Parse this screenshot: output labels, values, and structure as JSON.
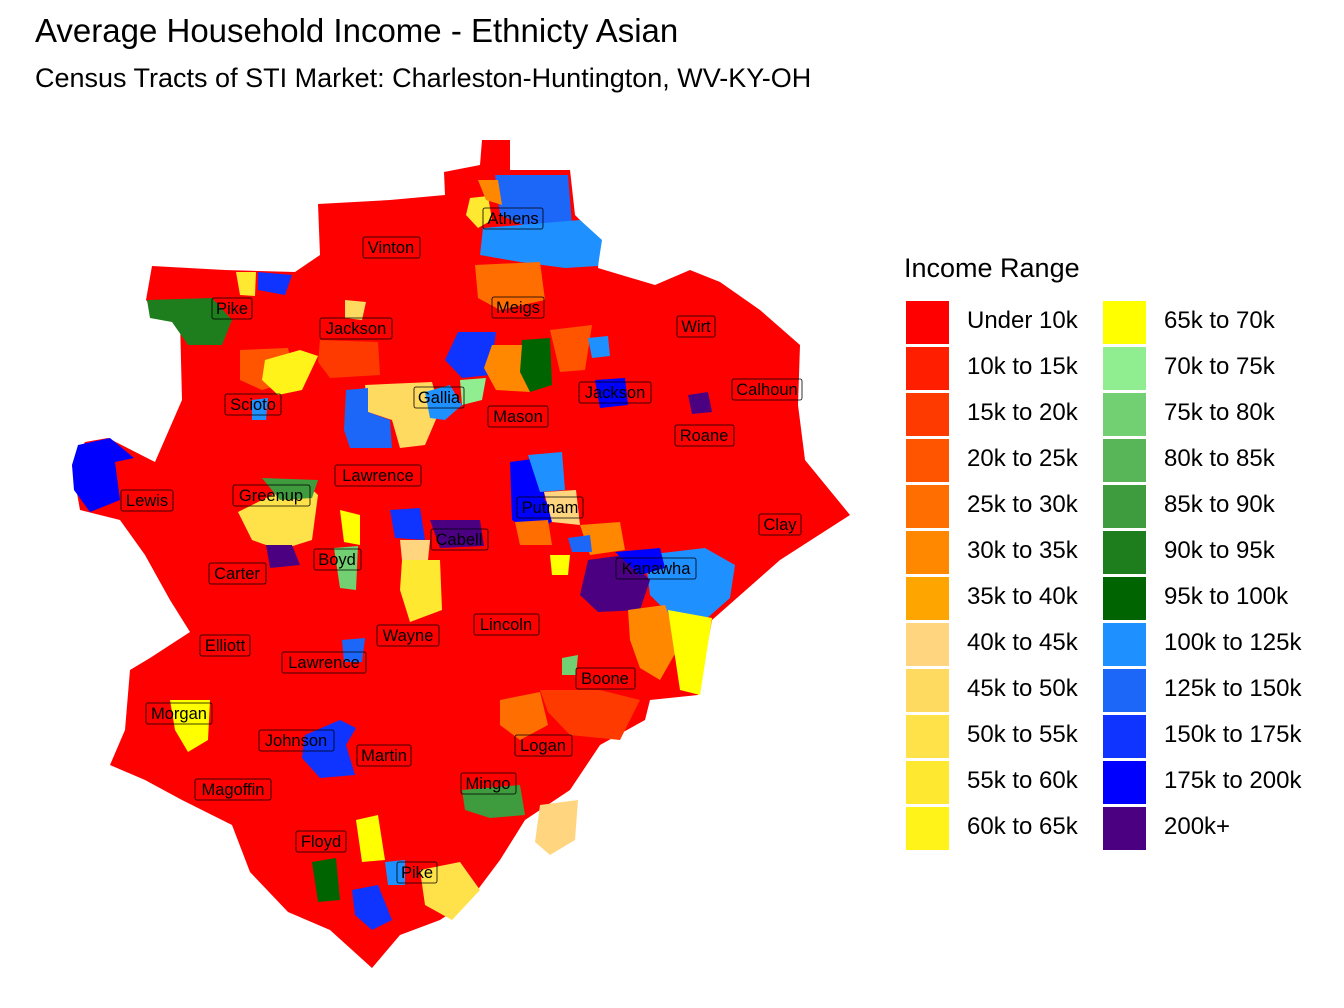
{
  "title": "Average Household Income - Ethnicty Asian",
  "subtitle": "Census Tracts of STI Market: Charleston-Huntington, WV-KY-OH",
  "legend": {
    "title": "Income Range",
    "items": [
      {
        "label": "Under 10k",
        "color": "#FF0000"
      },
      {
        "label": "10k to 15k",
        "color": "#FF1F00"
      },
      {
        "label": "15k to 20k",
        "color": "#FF3A00"
      },
      {
        "label": "20k to 25k",
        "color": "#FF5500"
      },
      {
        "label": "25k to 30k",
        "color": "#FF6E00"
      },
      {
        "label": "30k to 35k",
        "color": "#FF8800"
      },
      {
        "label": "35k to 40k",
        "color": "#FFA500"
      },
      {
        "label": "40k to 45k",
        "color": "#FFD580"
      },
      {
        "label": "45k to 50k",
        "color": "#FFDA60"
      },
      {
        "label": "50k to 55k",
        "color": "#FFE24A"
      },
      {
        "label": "55k to 60k",
        "color": "#FFE830"
      },
      {
        "label": "60k to 65k",
        "color": "#FFF31A"
      },
      {
        "label": "65k to 70k",
        "color": "#FFFF00"
      },
      {
        "label": "70k to 75k",
        "color": "#90EE90"
      },
      {
        "label": "75k to 80k",
        "color": "#72D072"
      },
      {
        "label": "80k to 85k",
        "color": "#58B558"
      },
      {
        "label": "85k to 90k",
        "color": "#3E9B3E"
      },
      {
        "label": "90k to 95k",
        "color": "#1E7E1E"
      },
      {
        "label": "95k to 100k",
        "color": "#006400"
      },
      {
        "label": "100k to 125k",
        "color": "#1E90FF"
      },
      {
        "label": "125k to 150k",
        "color": "#1C67F8"
      },
      {
        "label": "150k to 175k",
        "color": "#0F34FF"
      },
      {
        "label": "175k to 200k",
        "color": "#0000FF"
      },
      {
        "label": "200k+",
        "color": "#4B0082"
      }
    ]
  },
  "counties": [
    "Athens",
    "Vinton",
    "Meigs",
    "Pike",
    "Jackson",
    "Wirt",
    "Gallia",
    "Jackson",
    "Calhoun",
    "Scioto",
    "Mason",
    "Roane",
    "Lawrence",
    "Greenup",
    "Lewis",
    "Putnam",
    "Clay",
    "Cabell",
    "Boyd",
    "Kanawha",
    "Carter",
    "Wayne",
    "Lincoln",
    "Elliott",
    "Lawrence",
    "Boone",
    "Morgan",
    "Johnson",
    "Martin",
    "Logan",
    "Magoffin",
    "Mingo",
    "Floyd",
    "Pike"
  ]
}
